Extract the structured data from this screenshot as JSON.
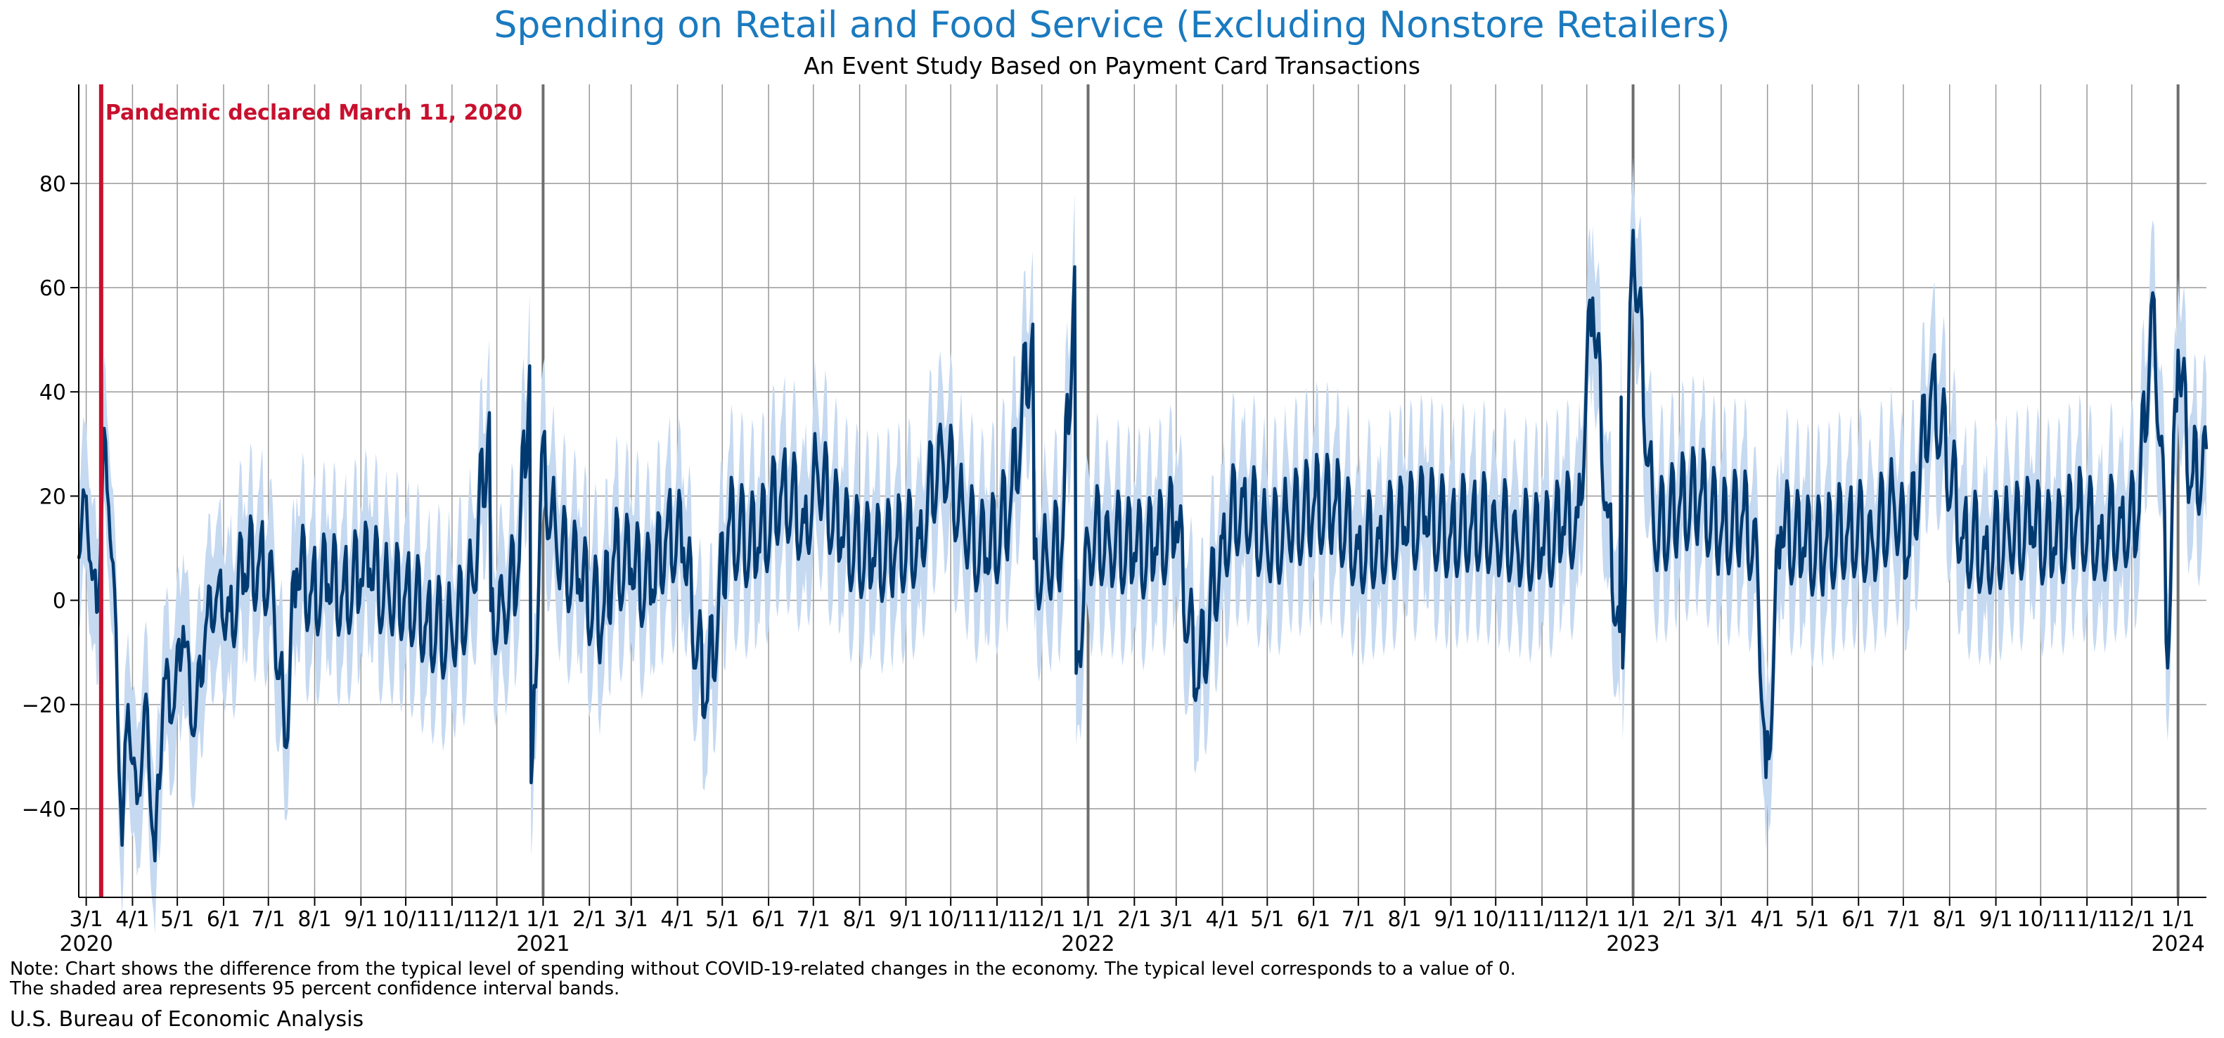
{
  "chart_data": {
    "type": "line",
    "title": "Spending on Retail and Food Service (Excluding Nonstore Retailers)",
    "subtitle": "An Event Study Based on Payment Card Transactions",
    "xlabel": "",
    "ylabel": "",
    "x_range": [
      "2020-02-25",
      "2024-01-20"
    ],
    "ylim": [
      -57,
      99
    ],
    "yticks": [
      -40,
      -20,
      0,
      20,
      40,
      60,
      80
    ],
    "grid": true,
    "legend": "none",
    "colors": {
      "line": "#003a70",
      "band": "#c5d9f1",
      "event": "#c8102e",
      "grid": "#999999",
      "year_line": "#6e6e6e"
    },
    "annotation": {
      "date": "2020-03-11",
      "text": "Pandemic declared March 11, 2020"
    },
    "month_ticks": [
      {
        "date": "2020-03-01",
        "label": "3/1"
      },
      {
        "date": "2020-04-01",
        "label": "4/1"
      },
      {
        "date": "2020-05-01",
        "label": "5/1"
      },
      {
        "date": "2020-06-01",
        "label": "6/1"
      },
      {
        "date": "2020-07-01",
        "label": "7/1"
      },
      {
        "date": "2020-08-01",
        "label": "8/1"
      },
      {
        "date": "2020-09-01",
        "label": "9/1"
      },
      {
        "date": "2020-10-01",
        "label": "10/1"
      },
      {
        "date": "2020-11-01",
        "label": "11/1"
      },
      {
        "date": "2020-12-01",
        "label": "12/1"
      },
      {
        "date": "2021-01-01",
        "label": "1/1"
      },
      {
        "date": "2021-02-01",
        "label": "2/1"
      },
      {
        "date": "2021-03-01",
        "label": "3/1"
      },
      {
        "date": "2021-04-01",
        "label": "4/1"
      },
      {
        "date": "2021-05-01",
        "label": "5/1"
      },
      {
        "date": "2021-06-01",
        "label": "6/1"
      },
      {
        "date": "2021-07-01",
        "label": "7/1"
      },
      {
        "date": "2021-08-01",
        "label": "8/1"
      },
      {
        "date": "2021-09-01",
        "label": "9/1"
      },
      {
        "date": "2021-10-01",
        "label": "10/1"
      },
      {
        "date": "2021-11-01",
        "label": "11/1"
      },
      {
        "date": "2021-12-01",
        "label": "12/1"
      },
      {
        "date": "2022-01-01",
        "label": "1/1"
      },
      {
        "date": "2022-02-01",
        "label": "2/1"
      },
      {
        "date": "2022-03-01",
        "label": "3/1"
      },
      {
        "date": "2022-04-01",
        "label": "4/1"
      },
      {
        "date": "2022-05-01",
        "label": "5/1"
      },
      {
        "date": "2022-06-01",
        "label": "6/1"
      },
      {
        "date": "2022-07-01",
        "label": "7/1"
      },
      {
        "date": "2022-08-01",
        "label": "8/1"
      },
      {
        "date": "2022-09-01",
        "label": "9/1"
      },
      {
        "date": "2022-10-01",
        "label": "10/1"
      },
      {
        "date": "2022-11-01",
        "label": "11/1"
      },
      {
        "date": "2022-12-01",
        "label": "12/1"
      },
      {
        "date": "2023-01-01",
        "label": "1/1"
      },
      {
        "date": "2023-02-01",
        "label": "2/1"
      },
      {
        "date": "2023-03-01",
        "label": "3/1"
      },
      {
        "date": "2023-04-01",
        "label": "4/1"
      },
      {
        "date": "2023-05-01",
        "label": "5/1"
      },
      {
        "date": "2023-06-01",
        "label": "6/1"
      },
      {
        "date": "2023-07-01",
        "label": "7/1"
      },
      {
        "date": "2023-08-01",
        "label": "8/1"
      },
      {
        "date": "2023-09-01",
        "label": "9/1"
      },
      {
        "date": "2023-10-01",
        "label": "10/1"
      },
      {
        "date": "2023-11-01",
        "label": "11/1"
      },
      {
        "date": "2023-12-01",
        "label": "12/1"
      },
      {
        "date": "2024-01-01",
        "label": "1/1"
      }
    ],
    "year_ticks": [
      {
        "date": "2020-03-01",
        "label": "2020"
      },
      {
        "date": "2021-01-01",
        "label": "2021"
      },
      {
        "date": "2022-01-01",
        "label": "2022"
      },
      {
        "date": "2023-01-01",
        "label": "2023"
      },
      {
        "date": "2024-01-01",
        "label": "2024"
      }
    ],
    "series": [
      {
        "x": [
          "2020-02-25",
          "2020-03-01",
          "2020-03-05",
          "2020-03-09",
          "2020-03-13",
          "2020-03-16",
          "2020-03-20",
          "2020-03-25",
          "2020-03-29",
          "2020-04-04",
          "2020-04-10",
          "2020-04-16",
          "2020-04-22",
          "2020-04-28",
          "2020-05-05",
          "2020-05-12",
          "2020-05-20",
          "2020-05-28",
          "2020-06-05",
          "2020-06-15",
          "2020-06-25",
          "2020-07-04",
          "2020-07-12",
          "2020-07-20",
          "2020-07-30",
          "2020-08-10",
          "2020-08-20",
          "2020-09-01",
          "2020-09-07",
          "2020-09-20",
          "2020-10-01",
          "2020-10-15",
          "2020-11-01",
          "2020-11-15",
          "2020-11-26",
          "2020-11-27",
          "2020-12-05",
          "2020-12-15",
          "2020-12-23",
          "2020-12-24",
          "2020-12-25",
          "2020-12-31",
          "2021-01-10",
          "2021-01-25",
          "2021-02-10",
          "2021-02-17",
          "2021-03-01",
          "2021-03-15",
          "2021-03-25",
          "2021-04-05",
          "2021-04-20",
          "2021-05-05",
          "2021-05-25",
          "2021-06-10",
          "2021-06-25",
          "2021-07-04",
          "2021-07-20",
          "2021-08-10",
          "2021-08-25",
          "2021-09-10",
          "2021-09-25",
          "2021-10-10",
          "2021-10-25",
          "2021-11-10",
          "2021-11-25",
          "2021-11-26",
          "2021-12-05",
          "2021-12-15",
          "2021-12-23",
          "2021-12-24",
          "2021-12-25",
          "2022-01-01",
          "2022-01-15",
          "2022-02-01",
          "2022-02-15",
          "2022-03-01",
          "2022-03-15",
          "2022-04-01",
          "2022-04-15",
          "2022-05-01",
          "2022-05-15",
          "2022-06-01",
          "2022-06-15",
          "2022-07-01",
          "2022-07-15",
          "2022-08-01",
          "2022-08-15",
          "2022-09-01",
          "2022-09-15",
          "2022-10-01",
          "2022-10-15",
          "2022-11-01",
          "2022-11-15",
          "2022-11-25",
          "2022-12-05",
          "2022-12-15",
          "2022-12-23",
          "2022-12-24",
          "2022-12-25",
          "2023-01-01",
          "2023-01-15",
          "2023-02-01",
          "2023-02-15",
          "2023-03-01",
          "2023-03-15",
          "2023-03-25",
          "2023-03-31",
          "2023-04-10",
          "2023-04-25",
          "2023-05-10",
          "2023-05-25",
          "2023-06-10",
          "2023-06-25",
          "2023-07-04",
          "2023-07-20",
          "2023-08-10",
          "2023-08-25",
          "2023-09-10",
          "2023-09-25",
          "2023-10-10",
          "2023-10-25",
          "2023-11-10",
          "2023-11-24",
          "2023-12-05",
          "2023-12-15",
          "2023-12-23",
          "2023-12-24",
          "2023-12-25",
          "2024-01-01",
          "2024-01-10",
          "2024-01-20"
        ],
        "y": [
          8,
          20,
          4,
          -2,
          33,
          18,
          2,
          -47,
          -20,
          -39,
          -18,
          -50,
          -15,
          -22,
          -5,
          -26,
          -5,
          2,
          -2,
          5,
          8,
          4,
          -28,
          6,
          2,
          3,
          2,
          4,
          6,
          0,
          2,
          -4,
          -7,
          3,
          36,
          -2,
          0,
          4,
          45,
          -35,
          -30,
          28,
          10,
          4,
          -4,
          8,
          6,
          2,
          14,
          10,
          -20,
          14,
          10,
          22,
          15,
          24,
          12,
          8,
          10,
          12,
          30,
          14,
          8,
          18,
          53,
          8,
          6,
          12,
          64,
          -14,
          -10,
          12,
          12,
          9,
          10,
          15,
          -17,
          12,
          20,
          10,
          14,
          18,
          18,
          10,
          12,
          14,
          16,
          13,
          15,
          14,
          12,
          10,
          14,
          16,
          58,
          16,
          -6,
          39,
          -13,
          71,
          12,
          18,
          20,
          13,
          16,
          10,
          -34,
          14,
          10,
          10,
          14,
          12,
          18,
          8,
          42,
          12,
          10,
          12,
          14,
          10,
          16,
          12,
          16,
          14,
          59,
          17,
          -8,
          -13,
          48,
          22,
          29
        ]
      }
    ]
  },
  "note_line1": "Note: Chart shows the difference from the typical level of spending without COVID-19-related changes in the economy. The typical level corresponds to a value of 0.",
  "note_line2": "The shaded area represents 95 percent confidence interval bands.",
  "source": "U.S. Bureau of Economic Analysis"
}
